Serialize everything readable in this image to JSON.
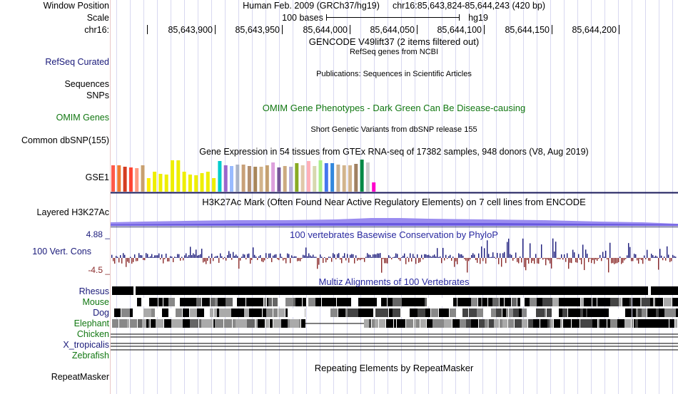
{
  "header": {
    "window_position_label": "Window Position",
    "scale_label": "Scale",
    "chrom_label": "chr16:",
    "assembly": "Human Feb. 2009 (GRCh37/hg19)",
    "position": "chr16:85,643,824-85,644,243 (420 bp)",
    "scale_text": "100 bases",
    "scale_db": "hg19",
    "ruler_ticks": [
      "85,643,900",
      "85,643,950",
      "85,644,000",
      "85,644,050",
      "85,644,100",
      "85,644,150",
      "85,644,200"
    ]
  },
  "tracks": {
    "gencode": {
      "title": "GENCODE V49lift37 (2 items filtered out)"
    },
    "refseq": {
      "label": "RefSeq Curated",
      "title": "RefSeq genes from NCBI",
      "color": "#1a1a7a"
    },
    "publications": {
      "title": "Publications: Sequences in Scientific Articles"
    },
    "sequences": {
      "label": "Sequences"
    },
    "snps": {
      "label": "SNPs"
    },
    "omim": {
      "label": "OMIM Genes",
      "title": "OMIM Gene Phenotypes - Dark Green Can Be Disease-causing",
      "color": "#117711"
    },
    "dbsnp": {
      "label": "Common dbSNP(155)",
      "title": "Short Genetic Variants from dbSNP release 155"
    },
    "gtex": {
      "label": "GSE1",
      "title": "Gene Expression in 54 tissues from GTEx RNA-seq of 17382 samples, 948 donors (V8, Aug 2019)",
      "bars": [
        {
          "c": "#ff5a4a",
          "v": 0.78
        },
        {
          "c": "#f07a30",
          "v": 0.78
        },
        {
          "c": "#d43c20",
          "v": 0.72
        },
        {
          "c": "#ff4433",
          "v": 0.7
        },
        {
          "c": "#ff9a80",
          "v": 0.68
        },
        {
          "c": "#c8a070",
          "v": 0.78
        },
        {
          "c": "#ffee00",
          "v": 0.4
        },
        {
          "c": "#eeee00",
          "v": 0.58
        },
        {
          "c": "#eeee00",
          "v": 0.52
        },
        {
          "c": "#eeee00",
          "v": 0.5
        },
        {
          "c": "#eeee00",
          "v": 0.92
        },
        {
          "c": "#eeee00",
          "v": 0.92
        },
        {
          "c": "#eeee00",
          "v": 0.58
        },
        {
          "c": "#eeee00",
          "v": 0.5
        },
        {
          "c": "#eeee00",
          "v": 0.48
        },
        {
          "c": "#eeee00",
          "v": 0.55
        },
        {
          "c": "#eeee00",
          "v": 0.58
        },
        {
          "c": "#eeee00",
          "v": 0.4
        },
        {
          "c": "#00cccc",
          "v": 0.9
        },
        {
          "c": "#9966cc",
          "v": 0.78
        },
        {
          "c": "#99bbff",
          "v": 0.74
        },
        {
          "c": "#aab4c8",
          "v": 0.8
        },
        {
          "c": "#c8a078",
          "v": 0.8
        },
        {
          "c": "#b49070",
          "v": 0.76
        },
        {
          "c": "#a8865a",
          "v": 0.72
        },
        {
          "c": "#d2b48c",
          "v": 0.72
        },
        {
          "c": "#c4a070",
          "v": 0.78
        },
        {
          "c": "#dda0dd",
          "v": 0.86
        },
        {
          "c": "#775599",
          "v": 0.7
        },
        {
          "c": "#ccaa80",
          "v": 0.74
        },
        {
          "c": "#b8b0d8",
          "v": 0.72
        },
        {
          "c": "#88aa22",
          "v": 0.84
        },
        {
          "c": "#e0c8a8",
          "v": 0.78
        },
        {
          "c": "#ffb0b8",
          "v": 0.9
        },
        {
          "c": "#d8d8b0",
          "v": 0.76
        },
        {
          "c": "#aaee88",
          "v": 0.92
        },
        {
          "c": "#4477ee",
          "v": 0.84
        },
        {
          "c": "#3388dd",
          "v": 0.84
        },
        {
          "c": "#c8b090",
          "v": 0.8
        },
        {
          "c": "#d2b48c",
          "v": 0.78
        },
        {
          "c": "#d2b48c",
          "v": 0.78
        },
        {
          "c": "#a08060",
          "v": 0.82
        },
        {
          "c": "#008844",
          "v": 0.94
        },
        {
          "c": "#cccccc",
          "v": 0.86
        },
        {
          "c": "#ff00cc",
          "v": 0.28
        }
      ]
    },
    "h3k27ac": {
      "label": "Layered H3K27Ac",
      "title": "H3K27Ac Mark (Often Found Near Active Regulatory Elements) on 7 cell lines from ENCODE"
    },
    "phylop": {
      "label": "100 Vert. Cons",
      "title": "100 vertebrates Basewise Conservation by PhyloP",
      "max": "4.88 _",
      "min": "-4.5 _",
      "pos_color": "#1a1a7a",
      "neg_color": "#8a2a2a"
    },
    "multiz": {
      "title": "Multiz Alignments of 100 Vertebrates",
      "species": [
        {
          "name": "Rhesus",
          "color": "#1a1a7a"
        },
        {
          "name": "Mouse",
          "color": "#117711"
        },
        {
          "name": "Dog",
          "color": "#1a1a7a"
        },
        {
          "name": "Elephant",
          "color": "#117711"
        },
        {
          "name": "Chicken",
          "color": "#117711"
        },
        {
          "name": "X_tropicalis",
          "color": "#1a1a7a"
        },
        {
          "name": "Zebrafish",
          "color": "#117711"
        }
      ]
    },
    "repeatmasker": {
      "label": "RepeatMasker",
      "title": "Repeating Elements by RepeatMasker"
    }
  }
}
